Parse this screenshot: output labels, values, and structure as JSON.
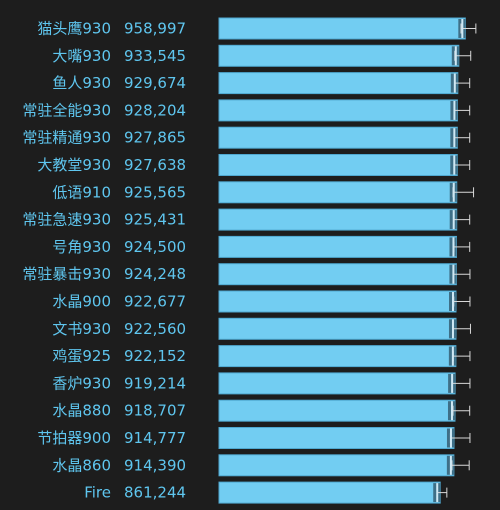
{
  "colors": {
    "background": "#1d1d1d",
    "bar_fill": "#72cdf2",
    "bar_border": "#4fa8d0",
    "bar_end": "#3e6f87",
    "whisker": "#d8d8d8",
    "text": "#5fc6ef"
  },
  "chart_data": {
    "type": "bar",
    "orientation": "horizontal",
    "title": "",
    "xlabel": "",
    "ylabel": "",
    "grid": false,
    "categories": [
      "猫头鹰930",
      "大嘴930",
      "鱼人930",
      "常驻全能930",
      "常驻精通930",
      "大教堂930",
      "低语910",
      "常驻急速930",
      "号角930",
      "常驻暴击930",
      "水晶900",
      "文书930",
      "鸡蛋925",
      "香炉930",
      "水晶880",
      "节拍器900",
      "水晶860",
      "Fire"
    ],
    "value_labels": [
      "958,997",
      "933,545",
      "929,674",
      "928,204",
      "927,865",
      "927,638",
      "925,565",
      "925,431",
      "924,500",
      "924,248",
      "922,677",
      "922,560",
      "922,152",
      "919,214",
      "918,707",
      "914,777",
      "914,390",
      "861,244"
    ],
    "values": [
      958997,
      933545,
      929674,
      928204,
      927865,
      927638,
      925565,
      925431,
      924500,
      924248,
      922677,
      922560,
      922152,
      919214,
      918707,
      914777,
      914390,
      861244
    ],
    "error_low": [
      942000,
      918000,
      917000,
      916000,
      916000,
      916000,
      911000,
      914000,
      915000,
      912000,
      914000,
      912000,
      912000,
      908000,
      911000,
      901000,
      907000,
      850000
    ],
    "error_high": [
      1000000,
      980000,
      976000,
      976000,
      976000,
      976000,
      991000,
      976000,
      976000,
      977000,
      977000,
      979000,
      977000,
      977000,
      976000,
      977000,
      974000,
      887000
    ],
    "xlim": [
      0,
      1020000
    ]
  }
}
